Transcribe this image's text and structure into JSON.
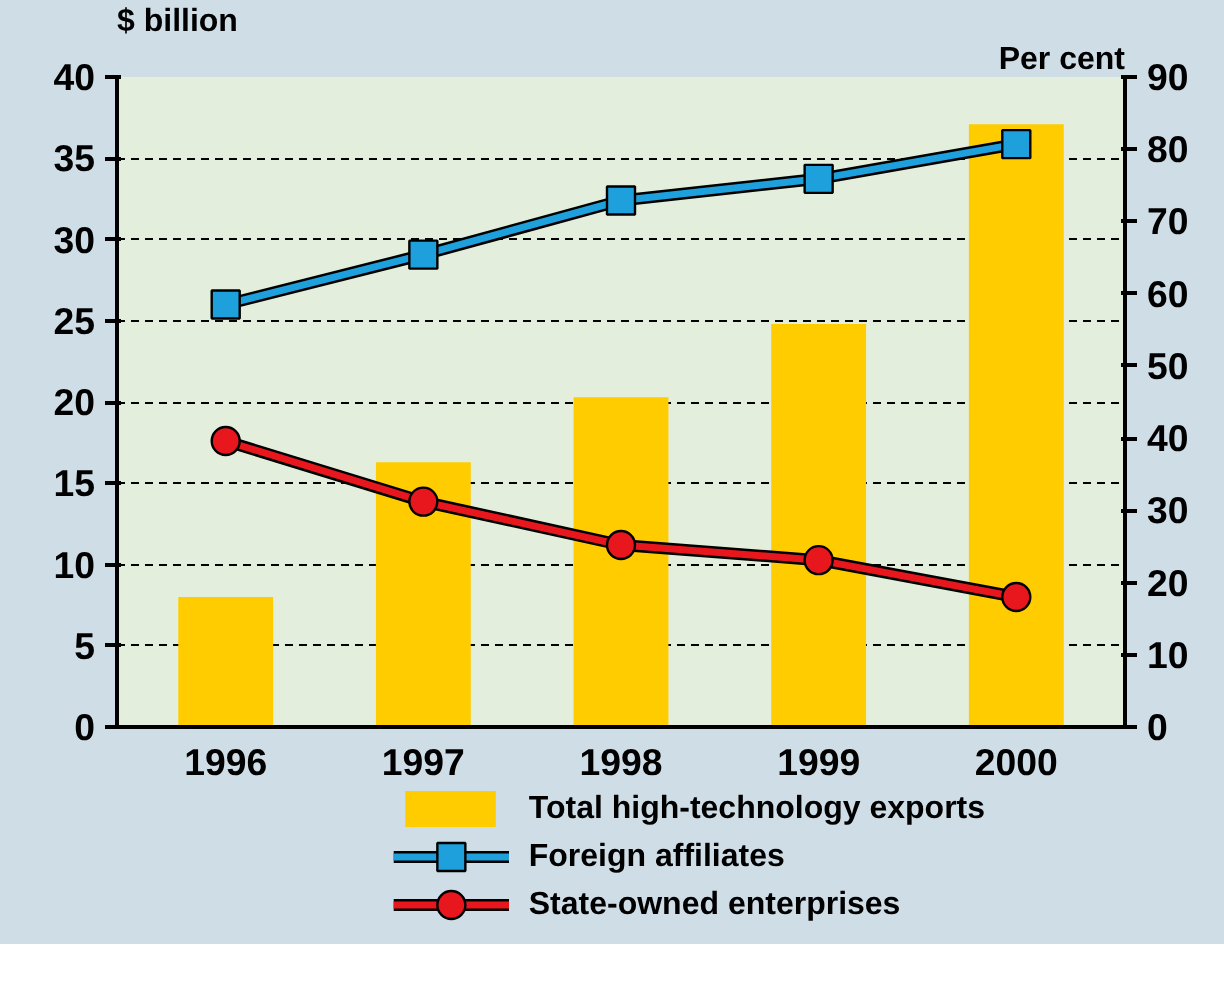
{
  "chart_data": {
    "type": "bar",
    "ylabel": "$ billion",
    "y2label": "Per cent",
    "categories": [
      "1996",
      "1997",
      "1998",
      "1999",
      "2000"
    ],
    "series": [
      {
        "name": "Total high-technology exports",
        "color": "#ffcc00",
        "values": [
          8.0,
          16.3,
          20.3,
          24.8,
          37.1
        ]
      },
      {
        "name": "Foreign affiliates",
        "type": "line",
        "axis": "y2",
        "marker": "square",
        "color": "#1ea0dc",
        "values": [
          58.5,
          65.4,
          72.9,
          75.9,
          80.7
        ]
      },
      {
        "name": "State-owned enterprises",
        "type": "line",
        "axis": "y2",
        "marker": "circle",
        "color": "#e8171e",
        "values": [
          39.6,
          31.2,
          25.2,
          23.1,
          18.0
        ]
      }
    ],
    "ylim": [
      0,
      40
    ],
    "yticks": [
      0,
      5,
      10,
      15,
      20,
      25,
      30,
      35,
      40
    ],
    "y2lim": [
      0,
      90
    ],
    "y2ticks": [
      0,
      10,
      20,
      30,
      40,
      50,
      60,
      70,
      80,
      90
    ],
    "grid": "y",
    "legend": "bottom"
  }
}
